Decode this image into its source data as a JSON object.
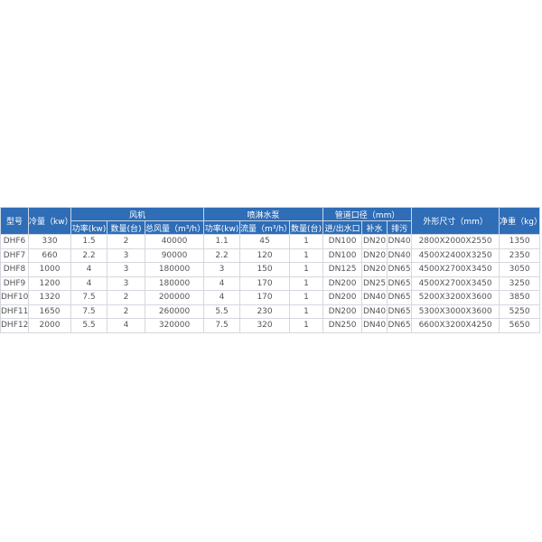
{
  "header": {
    "model": "型号",
    "cooling": "冷量（kw）",
    "fan": "风机",
    "pump": "喷淋水泵",
    "pipe": "管道口径（mm）",
    "dimensions": "外形尺寸（mm）",
    "weight": "净重（kg）",
    "fan_power": "功率(kw)",
    "fan_qty": "数量(台)",
    "fan_airflow": "总风量（m³/h）",
    "pump_power": "功率(kw)",
    "pump_flow": "流量（m³/h）",
    "pump_qty": "数量(台)",
    "pipe_inout": "进/出水口",
    "pipe_makeup": "补水",
    "pipe_drain": "排污"
  },
  "rows": [
    [
      "DHF6",
      "330",
      "1.5",
      "2",
      "40000",
      "1.1",
      "45",
      "1",
      "DN100",
      "DN20",
      "DN40",
      "2800X2000X2550",
      "1350"
    ],
    [
      "DHF7",
      "660",
      "2.2",
      "3",
      "90000",
      "2.2",
      "120",
      "1",
      "DN100",
      "DN20",
      "DN40",
      "4500X2400X3250",
      "2350"
    ],
    [
      "DHF8",
      "1000",
      "4",
      "3",
      "180000",
      "3",
      "150",
      "1",
      "DN125",
      "DN20",
      "DN65",
      "4500X2700X3450",
      "3050"
    ],
    [
      "DHF9",
      "1200",
      "4",
      "3",
      "180000",
      "4",
      "170",
      "1",
      "DN200",
      "DN25",
      "DN65",
      "4500X2700X3450",
      "3250"
    ],
    [
      "DHF10",
      "1320",
      "7.5",
      "2",
      "200000",
      "4",
      "170",
      "1",
      "DN200",
      "DN40",
      "DN65",
      "5200X3200X3600",
      "3850"
    ],
    [
      "DHF11",
      "1650",
      "7.5",
      "2",
      "260000",
      "5.5",
      "230",
      "1",
      "DN200",
      "DN40",
      "DN65",
      "5300X3000X3600",
      "5250"
    ],
    [
      "DHF12",
      "2000",
      "5.5",
      "4",
      "320000",
      "7.5",
      "320",
      "1",
      "DN250",
      "DN40",
      "DN65",
      "6600X3200X4250",
      "5650"
    ]
  ],
  "colors": {
    "header_bg": "#2f6db6"
  }
}
